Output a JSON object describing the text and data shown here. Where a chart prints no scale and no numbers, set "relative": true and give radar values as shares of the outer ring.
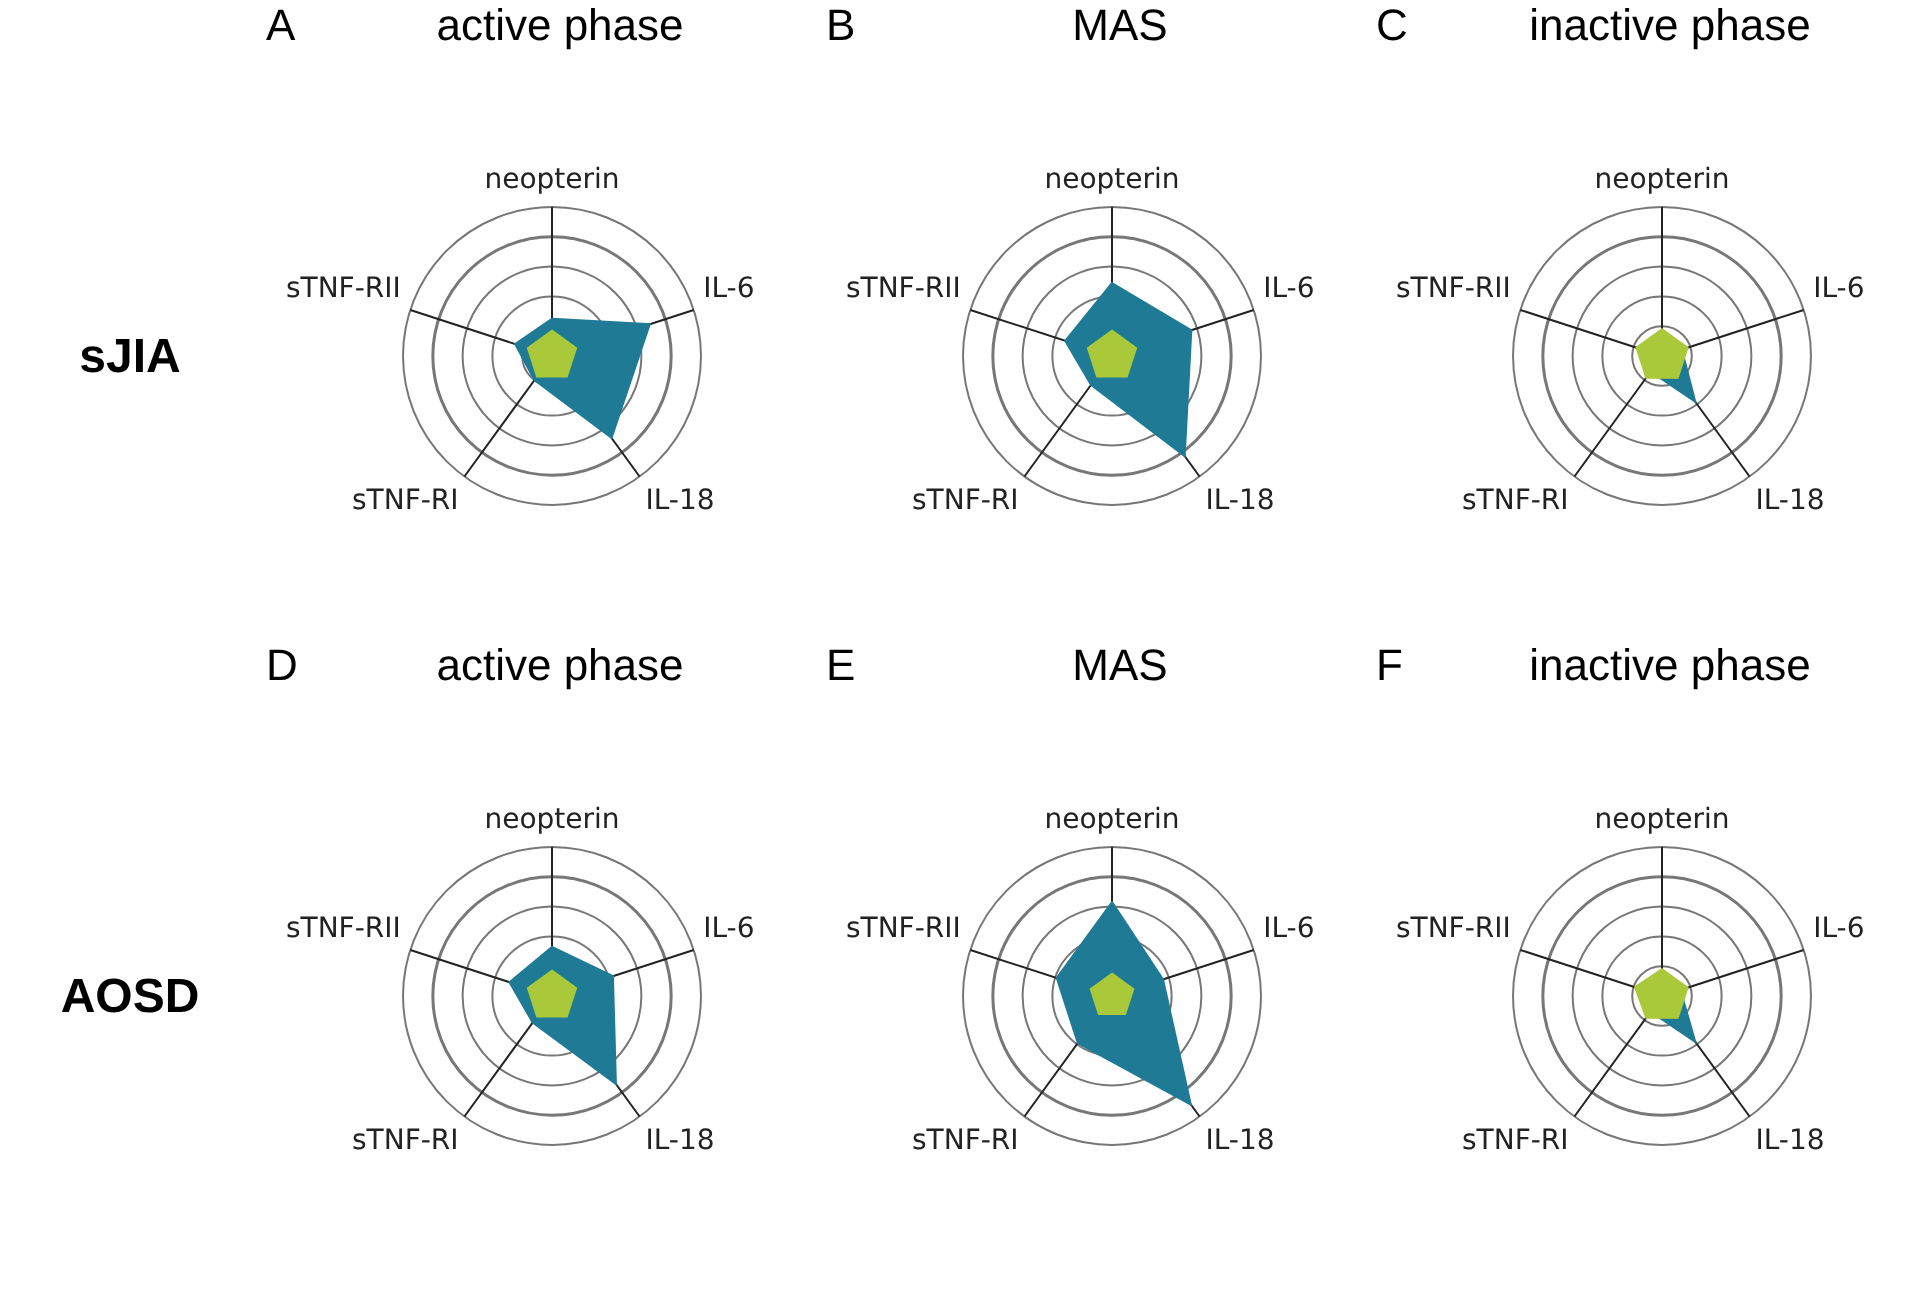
{
  "chart_data": [
    {
      "type": "radar",
      "title": "active phase",
      "ylabel": "sJIA",
      "annotations": [
        "A"
      ],
      "relative": true,
      "grid": true,
      "legend": false,
      "categories": [
        "neopterin",
        "IL-6",
        "IL-18",
        "sTNF-RI",
        "sTNF-RII"
      ],
      "series": [
        {
          "color": "#1f7b95",
          "values": [
            0.25,
            0.69,
            0.68,
            0.2,
            0.26
          ]
        },
        {
          "color": "#a9c83a",
          "values": [
            0.17,
            0.17,
            0.17,
            0.17,
            0.17
          ]
        }
      ]
    },
    {
      "type": "radar",
      "title": "MAS",
      "annotations": [
        "B"
      ],
      "relative": true,
      "grid": true,
      "legend": false,
      "categories": [
        "neopterin",
        "IL-6",
        "IL-18",
        "sTNF-RI",
        "sTNF-RII"
      ],
      "series": [
        {
          "color": "#1f7b95",
          "values": [
            0.49,
            0.56,
            0.83,
            0.24,
            0.33
          ]
        },
        {
          "color": "#a9c83a",
          "values": [
            0.17,
            0.17,
            0.17,
            0.17,
            0.17
          ]
        }
      ]
    },
    {
      "type": "radar",
      "title": "inactive phase",
      "annotations": [
        "C"
      ],
      "relative": true,
      "grid": true,
      "legend": false,
      "categories": [
        "neopterin",
        "IL-6",
        "IL-18",
        "sTNF-RI",
        "sTNF-RII"
      ],
      "series": [
        {
          "color": "#1f7b95",
          "values": [
            0.12,
            0.14,
            0.38,
            0.13,
            0.13
          ]
        },
        {
          "color": "#a9c83a",
          "values": [
            0.18,
            0.18,
            0.18,
            0.18,
            0.18
          ]
        }
      ]
    },
    {
      "type": "radar",
      "title": "active phase",
      "ylabel": "AOSD",
      "annotations": [
        "D"
      ],
      "relative": true,
      "grid": true,
      "legend": false,
      "categories": [
        "neopterin",
        "IL-6",
        "IL-18",
        "sTNF-RI",
        "sTNF-RII"
      ],
      "series": [
        {
          "color": "#1f7b95",
          "values": [
            0.33,
            0.43,
            0.73,
            0.22,
            0.3
          ]
        },
        {
          "color": "#a9c83a",
          "values": [
            0.17,
            0.17,
            0.17,
            0.17,
            0.17
          ]
        }
      ]
    },
    {
      "type": "radar",
      "title": "MAS",
      "annotations": [
        "E"
      ],
      "relative": true,
      "grid": true,
      "legend": false,
      "categories": [
        "neopterin",
        "IL-6",
        "IL-18",
        "sTNF-RI",
        "sTNF-RII"
      ],
      "series": [
        {
          "color": "#1f7b95",
          "values": [
            0.63,
            0.36,
            0.9,
            0.39,
            0.39
          ]
        },
        {
          "color": "#a9c83a",
          "values": [
            0.15,
            0.15,
            0.15,
            0.15,
            0.15
          ]
        }
      ]
    },
    {
      "type": "radar",
      "title": "inactive phase",
      "annotations": [
        "F"
      ],
      "relative": true,
      "grid": true,
      "legend": false,
      "categories": [
        "neopterin",
        "IL-6",
        "IL-18",
        "sTNF-RI",
        "sTNF-RII"
      ],
      "series": [
        {
          "color": "#1f7b95",
          "values": [
            0.12,
            0.13,
            0.38,
            0.13,
            0.13
          ]
        },
        {
          "color": "#a9c83a",
          "values": [
            0.18,
            0.18,
            0.18,
            0.18,
            0.19
          ]
        }
      ]
    }
  ]
}
